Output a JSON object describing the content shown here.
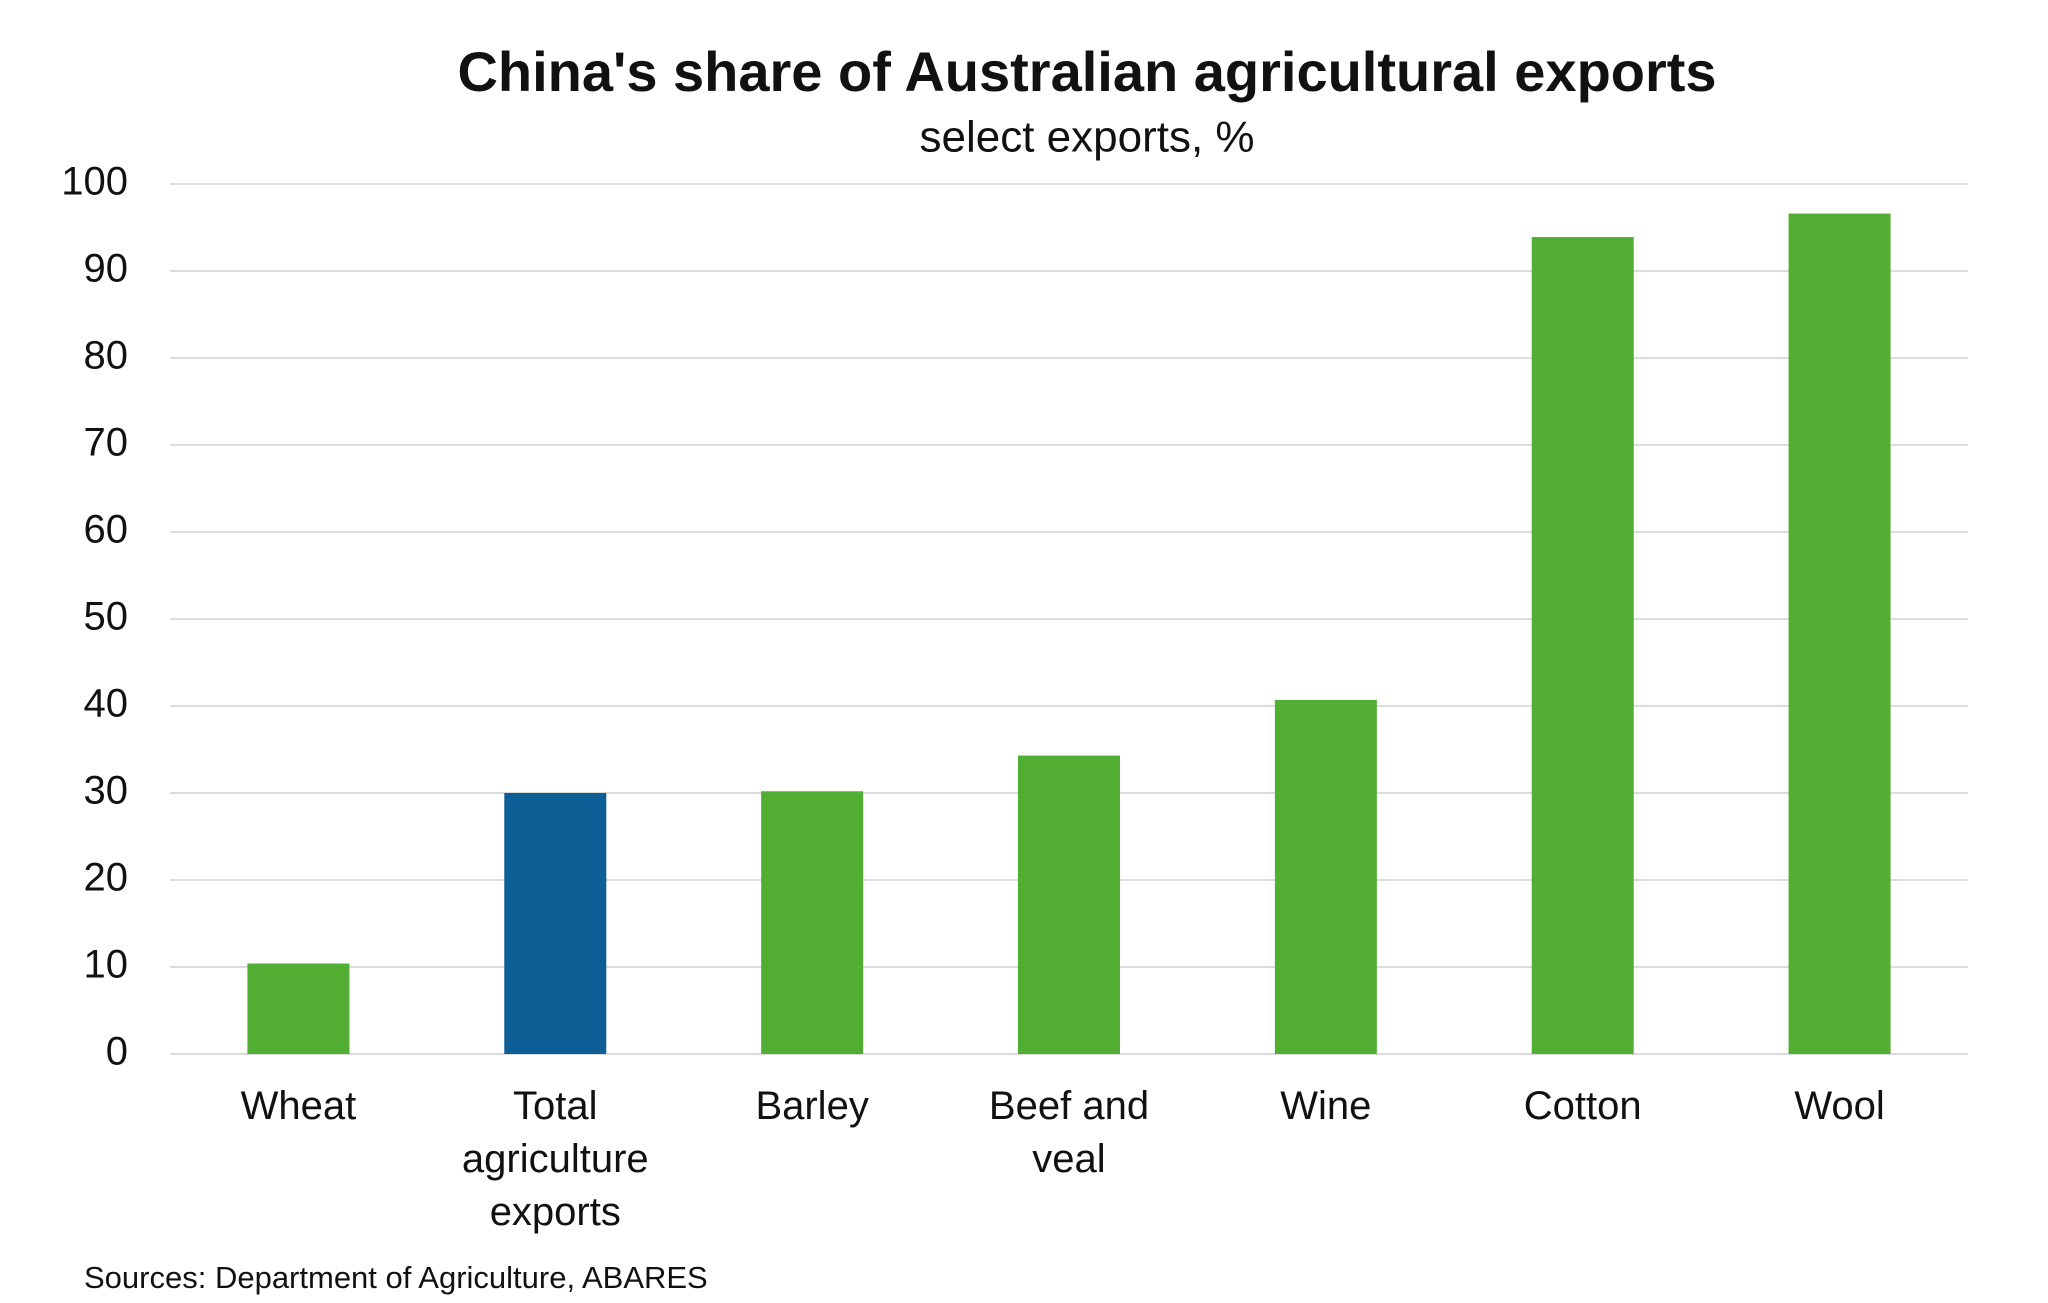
{
  "chart_data": {
    "type": "bar",
    "title": "China's share of Australian agricultural exports",
    "subtitle": "select exports, %",
    "categories": [
      "Wheat",
      "Total agriculture exports",
      "Barley",
      "Beef and veal",
      "Wine",
      "Cotton",
      "Wool"
    ],
    "values": [
      10.4,
      30.0,
      30.2,
      34.3,
      40.7,
      93.9,
      96.6
    ],
    "colors": [
      "#52ae32",
      "#0e5f96",
      "#52ae32",
      "#52ae32",
      "#52ae32",
      "#52ae32",
      "#52ae32"
    ],
    "ylim": [
      0,
      100
    ],
    "yticks": [
      0,
      10,
      20,
      30,
      40,
      50,
      60,
      70,
      80,
      90,
      100
    ],
    "grid": true,
    "source": "Sources: Department of Agriculture, ABARES"
  }
}
